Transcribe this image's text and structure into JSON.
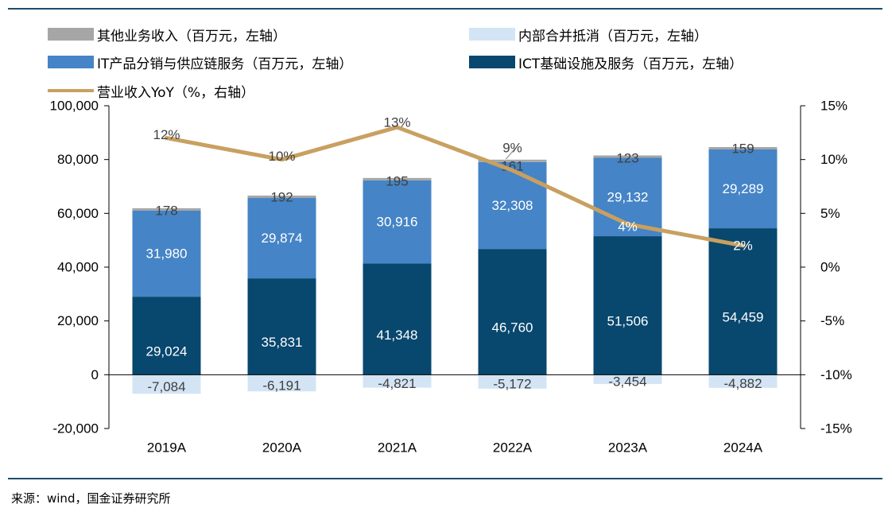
{
  "chart_data": {
    "type": "stacked-bar+line",
    "categories": [
      "2019A",
      "2020A",
      "2021A",
      "2022A",
      "2023A",
      "2024A"
    ],
    "series": [
      {
        "name": "其他业务收入（百万元，左轴）",
        "axis": "left",
        "color": "#a6a6a6",
        "values": [
          178,
          192,
          195,
          161,
          123,
          159
        ]
      },
      {
        "name": "内部合并抵消（百万元，左轴）",
        "axis": "left",
        "color": "#d3e4f4",
        "values": [
          -7084,
          -6191,
          -4821,
          -5172,
          -3454,
          -4882
        ]
      },
      {
        "name": "IT产品分销与供应链服务（百万元，左轴）",
        "axis": "left",
        "color": "#4584c6",
        "values": [
          31980,
          29874,
          30916,
          32308,
          29132,
          29289
        ]
      },
      {
        "name": "ICT基础设施及服务（百万元，左轴）",
        "axis": "left",
        "color": "#08476e",
        "values": [
          29024,
          35831,
          41348,
          46760,
          51506,
          54459
        ]
      },
      {
        "name": "营业收入YoY（%，右轴）",
        "axis": "right",
        "type": "line",
        "color": "#c8a060",
        "values": [
          12,
          10,
          13,
          9,
          4,
          2
        ]
      }
    ],
    "data_labels": {
      "other": [
        "178",
        "192",
        "195",
        "161",
        "123",
        "159"
      ],
      "elim": [
        "-7,084",
        "-6,191",
        "-4,821",
        "-5,172",
        "-3,454",
        "-4,882"
      ],
      "it": [
        "31,980",
        "29,874",
        "30,916",
        "32,308",
        "29,132",
        "29,289"
      ],
      "ict": [
        "29,024",
        "35,831",
        "41,348",
        "46,760",
        "51,506",
        "54,459"
      ],
      "yoy": [
        "12%",
        "10%",
        "13%",
        "9%",
        "4%",
        "2%"
      ]
    },
    "y_left": {
      "min": -20000,
      "max": 100000,
      "step": 20000,
      "ticks": [
        "-20,000",
        "0",
        "20,000",
        "40,000",
        "60,000",
        "80,000",
        "100,000"
      ]
    },
    "y_right": {
      "min": -15,
      "max": 15,
      "step": 5,
      "ticks": [
        "-15%",
        "-10%",
        "-5%",
        "0%",
        "5%",
        "10%",
        "15%"
      ]
    },
    "title": "",
    "xlabel": "",
    "ylabel": "",
    "grid": false,
    "legend": "top"
  },
  "legend": {
    "other": "其他业务收入（百万元，左轴）",
    "elim": "内部合并抵消（百万元，左轴）",
    "it": "IT产品分销与供应链服务（百万元，左轴）",
    "ict": "ICT基础设施及服务（百万元，左轴）",
    "yoy": "营业收入YoY（%，右轴）"
  },
  "source": "来源：wind，国金证券研究所"
}
